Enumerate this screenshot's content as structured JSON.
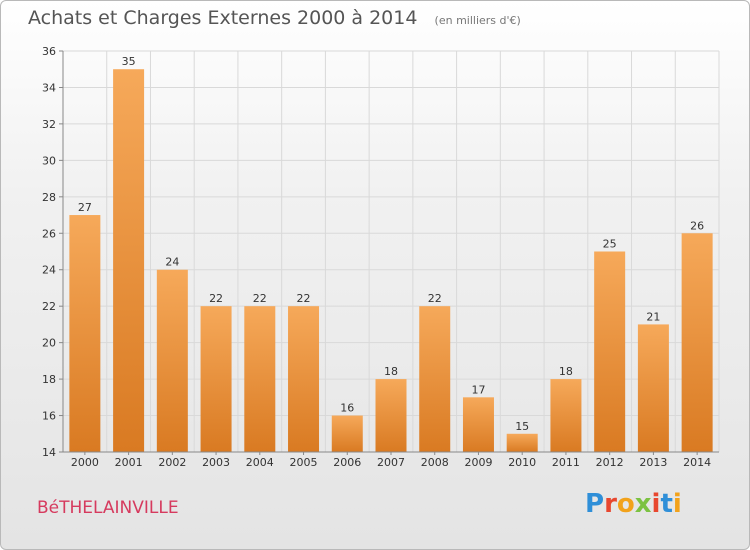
{
  "header": {
    "title": "Achats et Charges Externes 2000 à 2014",
    "unit": "(en milliers d'€)"
  },
  "footer": {
    "commune": "BéTHELAINVILLE",
    "logo_text": "Proxiti",
    "logo_colors": [
      "#2f8fd8",
      "#e8472f",
      "#f2a21b",
      "#7cc242",
      "#e8472f",
      "#2f8fd8",
      "#f2a21b"
    ]
  },
  "colors": {
    "bar_light": "#f6a95a",
    "bar_dark": "#d97a22",
    "grid": "#d9d9d9",
    "axis": "#888888"
  },
  "chart_data": {
    "type": "bar",
    "title": "Achats et Charges Externes 2000 à 2014",
    "subtitle": "(en milliers d'€)",
    "xlabel": "",
    "ylabel": "",
    "categories": [
      "2000",
      "2001",
      "2002",
      "2003",
      "2004",
      "2005",
      "2006",
      "2007",
      "2008",
      "2009",
      "2010",
      "2011",
      "2012",
      "2013",
      "2014"
    ],
    "values": [
      27,
      35,
      24,
      22,
      22,
      22,
      16,
      18,
      22,
      17,
      15,
      18,
      25,
      21,
      26
    ],
    "ylim": [
      14,
      36
    ],
    "yticks": [
      14,
      16,
      18,
      20,
      22,
      24,
      26,
      28,
      30,
      32,
      34,
      36
    ],
    "grid": true,
    "legend": "none"
  }
}
